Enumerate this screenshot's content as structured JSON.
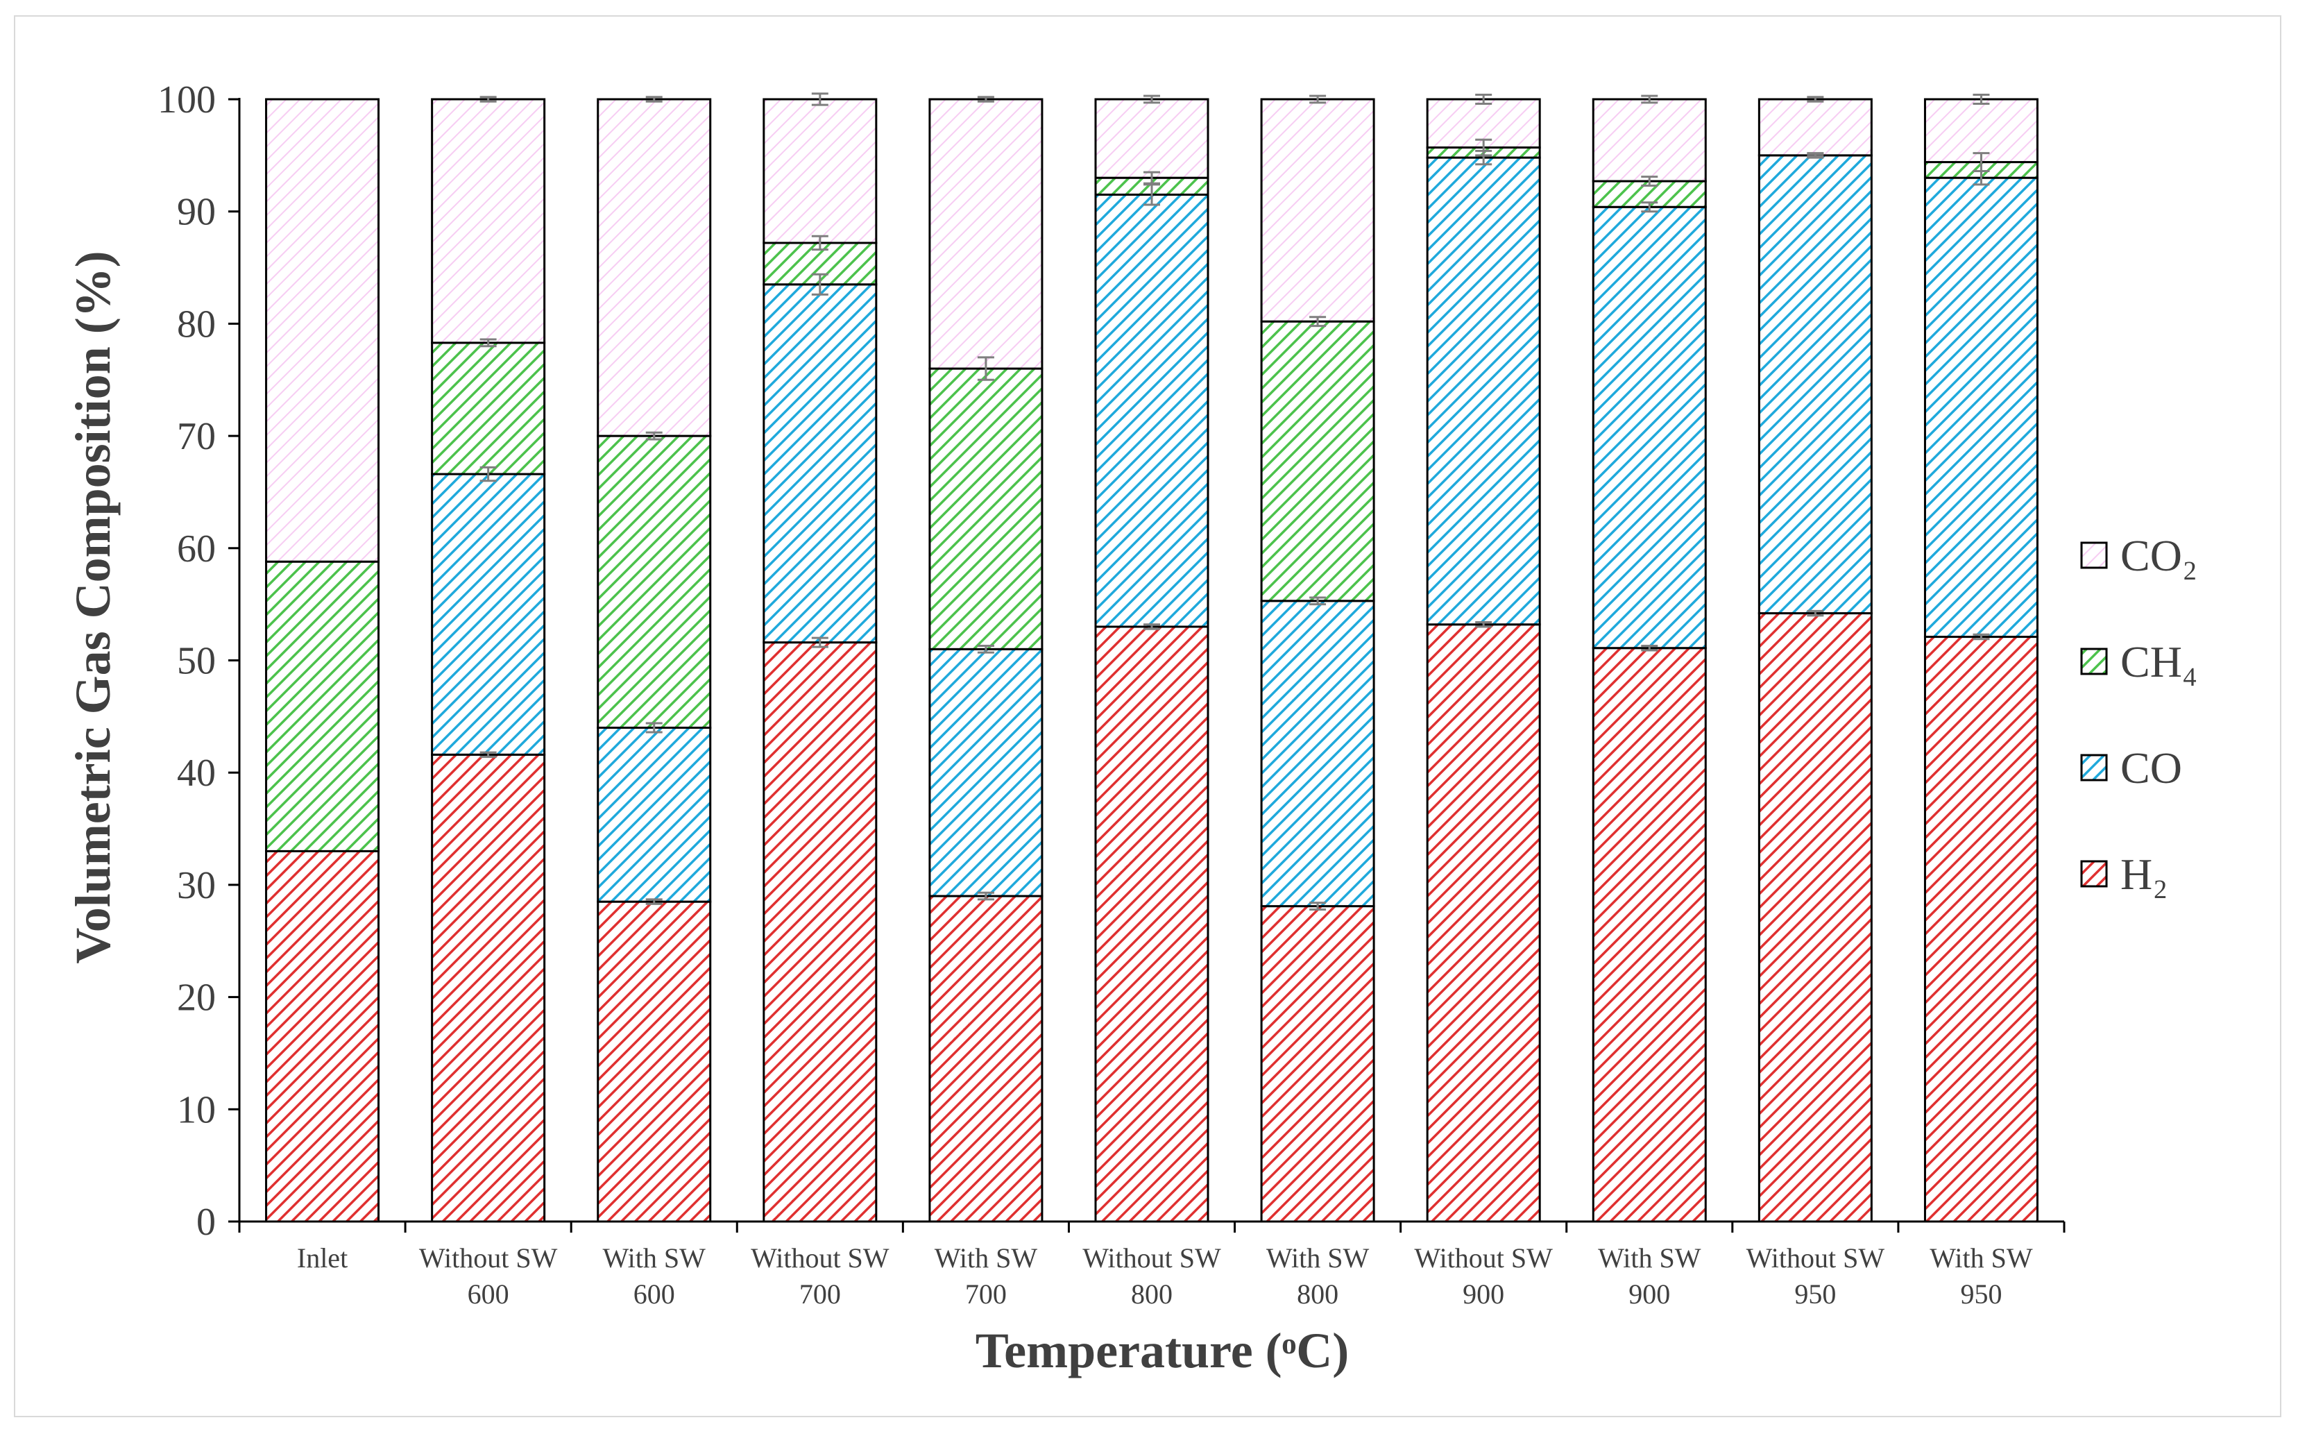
{
  "chart_data": {
    "type": "bar",
    "stacked": true,
    "title": "",
    "xlabel": "Temperature (ᵒC)",
    "ylabel": "Volumetric Gas Composition (%)",
    "ylim": [
      0,
      100
    ],
    "yticks": [
      0,
      10,
      20,
      30,
      40,
      50,
      60,
      70,
      80,
      90,
      100
    ],
    "categories": [
      [
        "Inlet"
      ],
      [
        "Without SW",
        "600"
      ],
      [
        "With SW",
        "600"
      ],
      [
        "Without SW",
        "700"
      ],
      [
        "With SW",
        "700"
      ],
      [
        "Without SW",
        "800"
      ],
      [
        "With SW",
        "800"
      ],
      [
        "Without SW",
        "900"
      ],
      [
        "With SW",
        "900"
      ],
      [
        "Without SW",
        "950"
      ],
      [
        "With SW",
        "950"
      ]
    ],
    "series": [
      {
        "name": "H₂",
        "color": "#e03030",
        "values": [
          33.0,
          41.6,
          28.5,
          51.6,
          29.0,
          53.0,
          28.1,
          53.2,
          51.1,
          54.2,
          52.1
        ]
      },
      {
        "name": "CO",
        "color": "#1fa9dc",
        "values": [
          0.0,
          25.0,
          15.5,
          31.9,
          22.0,
          38.5,
          27.2,
          41.6,
          39.3,
          40.8,
          40.9
        ]
      },
      {
        "name": "CH₄",
        "color": "#4cc24c",
        "values": [
          25.8,
          11.7,
          26.0,
          3.7,
          25.0,
          1.5,
          24.9,
          0.9,
          2.3,
          0.0,
          1.4
        ]
      },
      {
        "name": "CO₂",
        "color": "#f0a3e8",
        "values": [
          41.2,
          21.7,
          30.0,
          12.8,
          24.0,
          7.0,
          19.8,
          4.3,
          7.3,
          5.0,
          5.6
        ]
      }
    ],
    "error_bar_half": [
      [
        0,
        0.2,
        0.2,
        0.4,
        0.3,
        0.2,
        0.3,
        0.2,
        0.2,
        0.2,
        0.2
      ],
      [
        0,
        0.6,
        0.4,
        0.9,
        0.3,
        0.9,
        0.3,
        0.6,
        0.4,
        0.1,
        0.6
      ],
      [
        0,
        0.3,
        0.3,
        0.6,
        1.0,
        0.5,
        0.4,
        0.7,
        0.4,
        0.2,
        0.8
      ],
      [
        0,
        0.2,
        0.2,
        0.5,
        0.2,
        0.3,
        0.3,
        0.4,
        0.3,
        0.2,
        0.4
      ]
    ],
    "legend_order": [
      "CO₂",
      "CH₄",
      "CO",
      "H₂"
    ],
    "legend_position": "right",
    "grid": false
  }
}
